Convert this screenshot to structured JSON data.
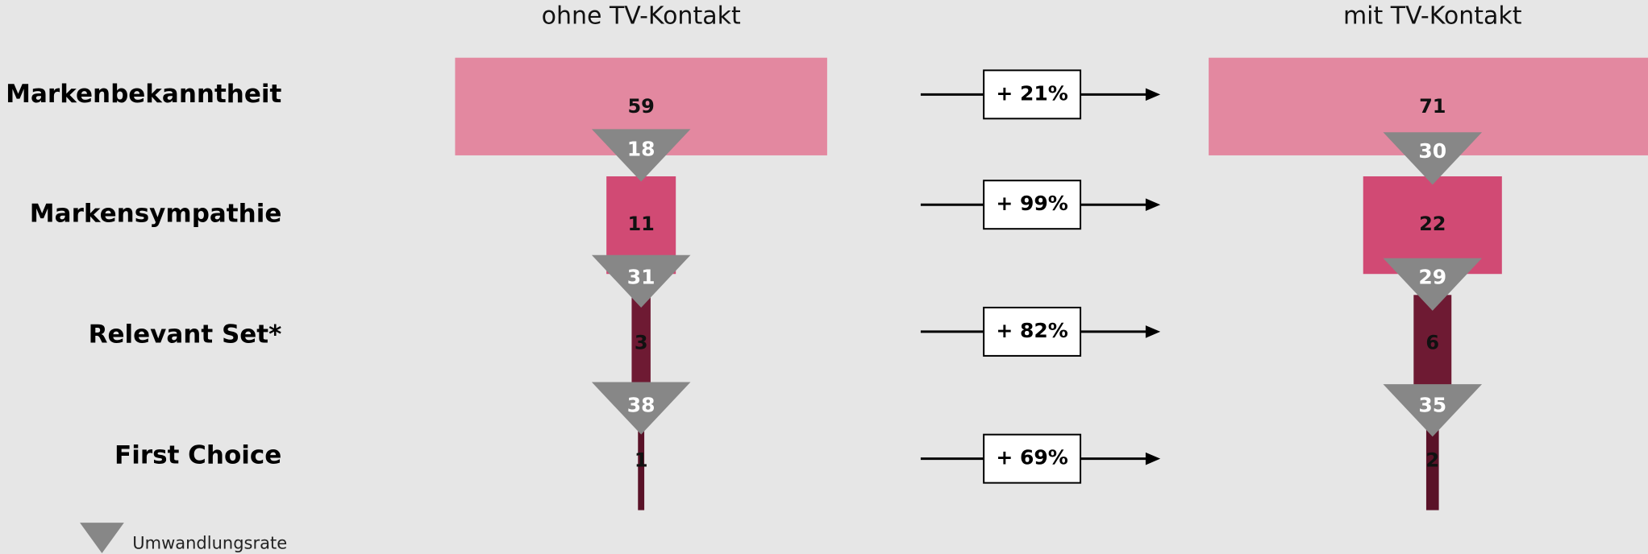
{
  "chart_data": {
    "type": "funnel",
    "categories": [
      "Markenbekanntheit",
      "Markensympathie",
      "Relevant Set*",
      "First Choice"
    ],
    "colors": [
      "#e388a0",
      "#d14a74",
      "#6e1a33",
      "#5a1228"
    ],
    "series": [
      {
        "name": "ohne TV-Kontakt",
        "values": [
          59,
          11,
          3,
          1
        ],
        "rates": [
          18,
          31,
          38
        ]
      },
      {
        "name": "mit TV-Kontakt",
        "values": [
          71,
          22,
          6,
          2
        ],
        "rates": [
          30,
          29,
          35
        ]
      }
    ],
    "changes": [
      21,
      99,
      82,
      69
    ],
    "change_labels": [
      "+ 21%",
      "+ 99%",
      "+ 82%",
      "+ 69%"
    ],
    "legend": "Umwandlungsrate",
    "rate_color": "#878787"
  }
}
